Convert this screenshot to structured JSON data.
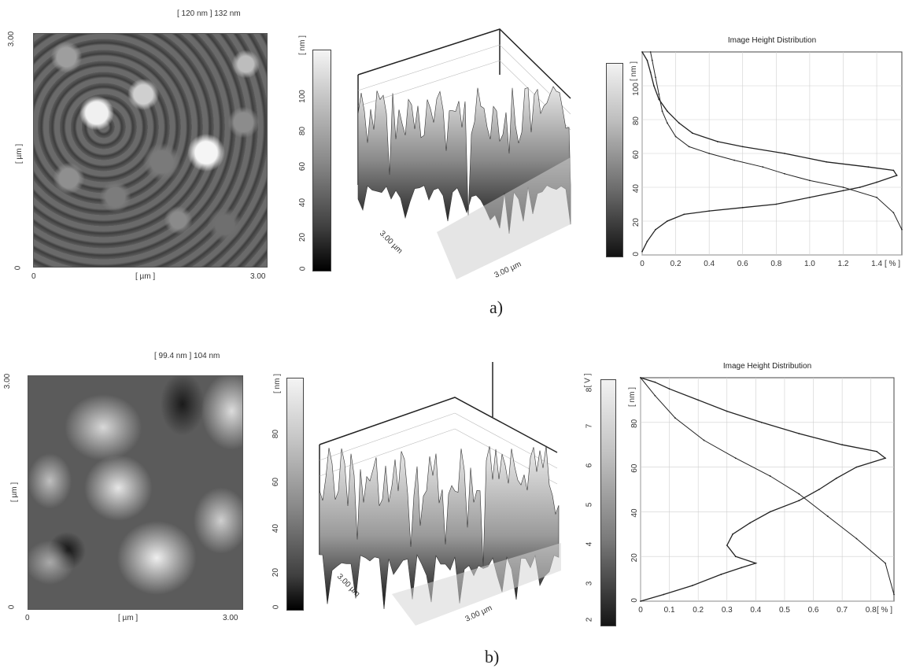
{
  "panels": [
    {
      "caption": "a)",
      "afm": {
        "header": "[ 120 nm ] 132 nm",
        "x_label": "[ µm ]",
        "y_label": "[ µm ]",
        "x_ticks": [
          "0",
          "3.00"
        ],
        "y_ticks": [
          "3.00",
          "0"
        ]
      },
      "colorbar": {
        "unit": "[ nm ]",
        "ticks": [
          "100",
          "80",
          "60",
          "40",
          "20",
          "0"
        ]
      },
      "surface": {
        "axis_x": "3.00 µm",
        "axis_y": "3.00 µm"
      },
      "histogram_colorbar": {
        "unit": "",
        "ticks": []
      },
      "chart_data": {
        "type": "line",
        "title": "Image Height Distribution",
        "ylabel": "[ nm ]",
        "xlabel": "[ % ]",
        "x_ticks": [
          "0",
          "0.2",
          "0.4",
          "0.6",
          "0.8",
          "1.0",
          "1.2",
          "1.4"
        ],
        "y_ticks": [
          "100",
          "80",
          "60",
          "40",
          "20",
          "0"
        ],
        "xlim": [
          0,
          1.55
        ],
        "ylim": [
          0,
          120
        ],
        "grid": true,
        "series": [
          {
            "role": "distribution",
            "points": [
              [
                0.0,
                2
              ],
              [
                0.03,
                8
              ],
              [
                0.08,
                15
              ],
              [
                0.15,
                20
              ],
              [
                0.25,
                24
              ],
              [
                0.4,
                26
              ],
              [
                0.6,
                28
              ],
              [
                0.8,
                30
              ],
              [
                1.0,
                34
              ],
              [
                1.2,
                38
              ],
              [
                1.3,
                40
              ],
              [
                1.4,
                43
              ],
              [
                1.52,
                47
              ],
              [
                1.5,
                50
              ],
              [
                1.35,
                52
              ],
              [
                1.1,
                55
              ],
              [
                0.85,
                60
              ],
              [
                0.6,
                64
              ],
              [
                0.45,
                67
              ],
              [
                0.3,
                72
              ],
              [
                0.22,
                78
              ],
              [
                0.15,
                85
              ],
              [
                0.1,
                92
              ],
              [
                0.07,
                100
              ],
              [
                0.05,
                108
              ],
              [
                0.03,
                115
              ],
              [
                0.0,
                120
              ]
            ]
          },
          {
            "role": "cumulative",
            "points": [
              [
                1.55,
                15
              ],
              [
                1.5,
                25
              ],
              [
                1.4,
                34
              ],
              [
                1.2,
                40
              ],
              [
                1.0,
                44
              ],
              [
                0.85,
                48
              ],
              [
                0.72,
                52
              ],
              [
                0.55,
                56
              ],
              [
                0.4,
                60
              ],
              [
                0.28,
                64
              ],
              [
                0.2,
                70
              ],
              [
                0.15,
                78
              ],
              [
                0.12,
                85
              ],
              [
                0.1,
                95
              ],
              [
                0.08,
                105
              ],
              [
                0.06,
                115
              ],
              [
                0.05,
                120
              ]
            ]
          }
        ]
      }
    },
    {
      "caption": "b)",
      "afm": {
        "header": "[ 99.4 nm ] 104 nm",
        "x_label": "[ µm ]",
        "y_label": "[ µm ]",
        "x_ticks": [
          "0",
          "3.00"
        ],
        "y_ticks": [
          "3.00",
          "0"
        ]
      },
      "colorbar": {
        "unit": "[ nm ]",
        "ticks": [
          "80",
          "60",
          "40",
          "20",
          "0"
        ]
      },
      "surface": {
        "axis_x": "3.00 µm",
        "axis_y": "3.00 µm"
      },
      "histogram_colorbar": {
        "unit": "[ V ]",
        "ticks": [
          "8",
          "7",
          "6",
          "5",
          "4",
          "3",
          "2"
        ]
      },
      "chart_data": {
        "type": "line",
        "title": "Image Height Distribution",
        "ylabel": "[ nm ]",
        "xlabel": "[ % ]",
        "x_ticks": [
          "0",
          "0.1",
          "0.2",
          "0.3",
          "0.4",
          "0.5",
          "0.6",
          "0.7",
          "0.8"
        ],
        "y_ticks": [
          "80",
          "60",
          "40",
          "20",
          "0"
        ],
        "xlim": [
          0,
          0.88
        ],
        "ylim": [
          0,
          100
        ],
        "grid": true,
        "series": [
          {
            "role": "distribution",
            "points": [
              [
                0.0,
                0
              ],
              [
                0.08,
                3
              ],
              [
                0.18,
                7
              ],
              [
                0.28,
                12
              ],
              [
                0.35,
                15
              ],
              [
                0.4,
                17
              ],
              [
                0.33,
                20
              ],
              [
                0.3,
                25
              ],
              [
                0.32,
                30
              ],
              [
                0.38,
                35
              ],
              [
                0.45,
                40
              ],
              [
                0.55,
                45
              ],
              [
                0.62,
                50
              ],
              [
                0.68,
                55
              ],
              [
                0.75,
                60
              ],
              [
                0.85,
                64
              ],
              [
                0.82,
                67
              ],
              [
                0.7,
                70
              ],
              [
                0.55,
                75
              ],
              [
                0.42,
                80
              ],
              [
                0.3,
                85
              ],
              [
                0.2,
                90
              ],
              [
                0.1,
                95
              ],
              [
                0.05,
                98
              ],
              [
                0.0,
                100
              ]
            ]
          },
          {
            "role": "cumulative",
            "points": [
              [
                0.88,
                3
              ],
              [
                0.85,
                17
              ],
              [
                0.75,
                28
              ],
              [
                0.65,
                38
              ],
              [
                0.55,
                48
              ],
              [
                0.45,
                56
              ],
              [
                0.33,
                64
              ],
              [
                0.22,
                72
              ],
              [
                0.12,
                82
              ],
              [
                0.05,
                92
              ],
              [
                0.0,
                100
              ]
            ]
          }
        ]
      }
    }
  ]
}
